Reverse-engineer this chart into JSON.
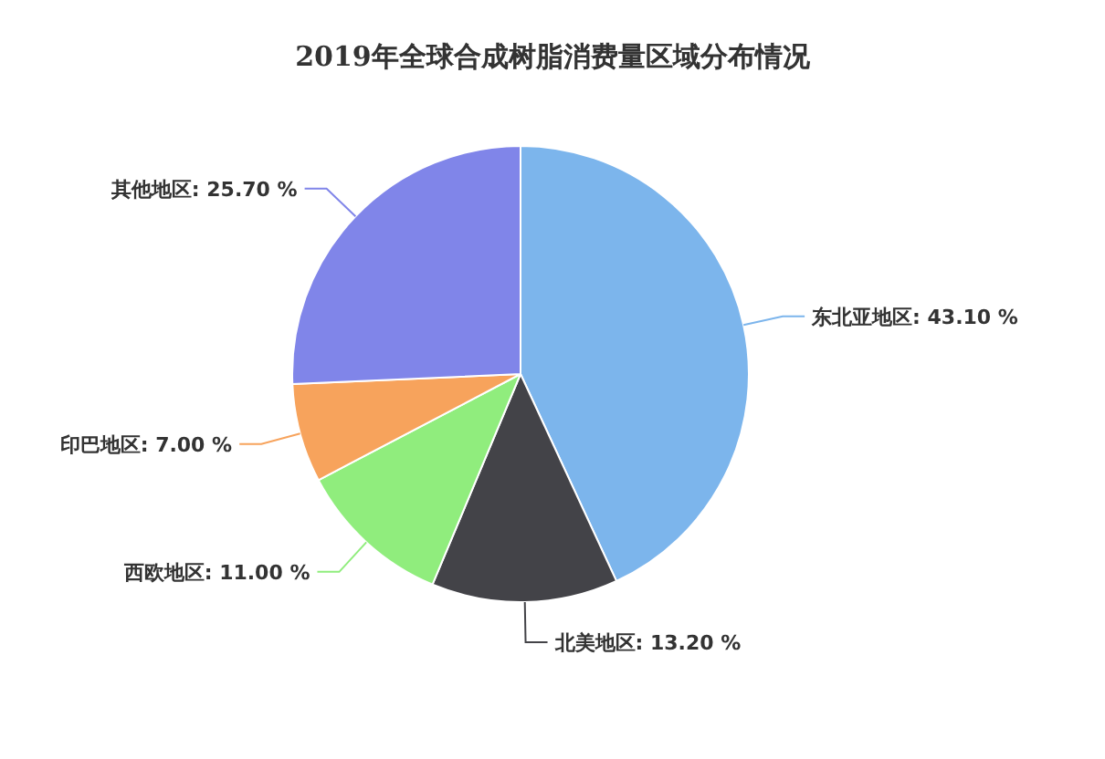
{
  "chart_data": {
    "type": "pie",
    "title": "2019年全球合成树脂消费量区域分布情况",
    "categories": [
      "东北亚地区",
      "北美地区",
      "西欧地区",
      "印巴地区",
      "其他地区"
    ],
    "values": [
      43.1,
      13.2,
      11.0,
      7.0,
      25.7
    ],
    "value_labels": [
      "43.10 %",
      "13.20 %",
      "11.00 %",
      "7.00 %",
      "25.70 %"
    ],
    "colors": [
      "#7cb5ec",
      "#434348",
      "#90ed7d",
      "#f7a35c",
      "#8085e9"
    ],
    "legend": false
  }
}
